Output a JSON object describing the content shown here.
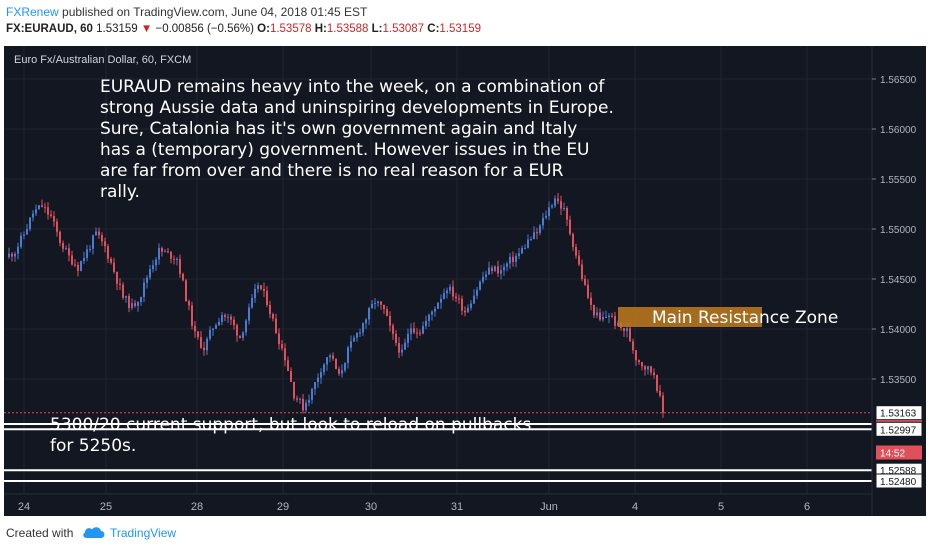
{
  "header": {
    "author": "FXRenew",
    "published": "published on TradingView.com, June 04, 2018 01:45 EST",
    "symbol_label": "FX:EURAUD, 60",
    "last": "1.53159",
    "change": "−0.00856 (−0.56%)",
    "o_label": "O:",
    "o": "1.53578",
    "h_label": "H:",
    "h": "1.53588",
    "l_label": "L:",
    "l": "1.53087",
    "c_label": "C:",
    "c": "1.53159"
  },
  "footer": {
    "created_with": "Created with",
    "brand": "TradingView"
  },
  "colors": {
    "background": "#131722",
    "up": "#4a7bd0",
    "down": "#e0505a",
    "grid": "#1f2533",
    "annotation_box": "#c27a1c"
  },
  "chart_data": {
    "type": "candlestick",
    "title": "Euro Fx/Australian Dollar, 60, FXCM",
    "ylim": [
      1.5235,
      1.5675
    ],
    "yticks": [
      "1.56500",
      "1.56000",
      "1.55500",
      "1.55000",
      "1.54500",
      "1.54000",
      "1.53500"
    ],
    "ytick_values": [
      1.565,
      1.56,
      1.555,
      1.55,
      1.545,
      1.54,
      1.535
    ],
    "xticks": [
      "24",
      "25",
      "28",
      "29",
      "30",
      "31",
      "Jun",
      "4",
      "5",
      "6"
    ],
    "price_markers": [
      {
        "label": "1.53163",
        "value": 1.53163,
        "style": "outline"
      },
      {
        "label": "1.53159",
        "value": 1.53159,
        "style": "red"
      },
      {
        "label": "14:52",
        "value": 1.52975,
        "style": "red-timer"
      },
      {
        "label": "1.52997",
        "value": 1.52997,
        "style": "outline"
      },
      {
        "label": "1.52588",
        "value": 1.52588,
        "style": "outline"
      },
      {
        "label": "1.52480",
        "value": 1.5248,
        "style": "outline"
      }
    ],
    "horizontal_lines": [
      1.53163,
      1.5305,
      1.52997,
      1.52588,
      1.5248
    ],
    "path": [
      [
        0,
        1.5472
      ],
      [
        3,
        1.5478
      ],
      [
        6,
        1.5495
      ],
      [
        9,
        1.5516
      ],
      [
        12,
        1.5523
      ],
      [
        15,
        1.5512
      ],
      [
        18,
        1.5488
      ],
      [
        21,
        1.5472
      ],
      [
        24,
        1.5462
      ],
      [
        27,
        1.5478
      ],
      [
        30,
        1.5495
      ],
      [
        33,
        1.5482
      ],
      [
        36,
        1.5458
      ],
      [
        39,
        1.5432
      ],
      [
        42,
        1.5422
      ],
      [
        45,
        1.5435
      ],
      [
        48,
        1.5461
      ],
      [
        51,
        1.5478
      ],
      [
        54,
        1.5475
      ],
      [
        57,
        1.5471
      ],
      [
        60,
        1.5432
      ],
      [
        63,
        1.5394
      ],
      [
        66,
        1.5381
      ],
      [
        69,
        1.5402
      ],
      [
        72,
        1.5415
      ],
      [
        75,
        1.5408
      ],
      [
        78,
        1.5392
      ],
      [
        81,
        1.5418
      ],
      [
        84,
        1.5445
      ],
      [
        87,
        1.5428
      ],
      [
        90,
        1.5398
      ],
      [
        93,
        1.5372
      ],
      [
        96,
        1.5335
      ],
      [
        99,
        1.5322
      ],
      [
        102,
        1.5338
      ],
      [
        105,
        1.5361
      ],
      [
        108,
        1.5375
      ],
      [
        111,
        1.5352
      ],
      [
        114,
        1.5378
      ],
      [
        117,
        1.5395
      ],
      [
        120,
        1.5411
      ],
      [
        123,
        1.5428
      ],
      [
        126,
        1.5418
      ],
      [
        129,
        1.5392
      ],
      [
        132,
        1.5375
      ],
      [
        135,
        1.5402
      ],
      [
        138,
        1.5398
      ],
      [
        141,
        1.5412
      ],
      [
        144,
        1.5428
      ],
      [
        147,
        1.5442
      ],
      [
        150,
        1.5432
      ],
      [
        153,
        1.5418
      ],
      [
        156,
        1.5435
      ],
      [
        159,
        1.5452
      ],
      [
        162,
        1.5461
      ],
      [
        165,
        1.5458
      ],
      [
        168,
        1.5468
      ],
      [
        171,
        1.5475
      ],
      [
        174,
        1.5488
      ],
      [
        177,
        1.5496
      ],
      [
        180,
        1.5515
      ],
      [
        183,
        1.5532
      ],
      [
        186,
        1.5518
      ],
      [
        189,
        1.5486
      ],
      [
        192,
        1.5452
      ],
      [
        195,
        1.5422
      ],
      [
        198,
        1.5408
      ],
      [
        201,
        1.5415
      ],
      [
        204,
        1.5402
      ],
      [
        207,
        1.5398
      ],
      [
        210,
        1.5372
      ],
      [
        213,
        1.5362
      ],
      [
        216,
        1.5356
      ],
      [
        219,
        1.5316
      ]
    ],
    "annotations": [
      {
        "id": "commentary",
        "text": "EURAUD remains heavy into the week, on a combination of strong Aussie data and uninspiring developments in Europe. Sure, Catalonia has it's own government again and Italy has a (temporary) government. However issues in the EU are far from over and there is no real reason for a EUR rally.",
        "lines": [
          "EURAUD remains heavy into the week, on a combination of",
          "strong Aussie data and uninspiring developments in Europe.",
          "Sure, Catalonia has it's own government again and Italy",
          "has a (temporary) government. However issues in the EU",
          "are far from over and there is no real reason for a EUR",
          "rally."
        ]
      },
      {
        "id": "resistance",
        "text": "Main Resistance Zone",
        "range": [
          1.5402,
          1.5422
        ]
      },
      {
        "id": "support",
        "text": "5300/20 current support, but look to reload on pullbacks for 5250s.",
        "lines": [
          "5300/20 current support, but look to reload on pullbacks",
          "for 5250s."
        ]
      }
    ]
  }
}
